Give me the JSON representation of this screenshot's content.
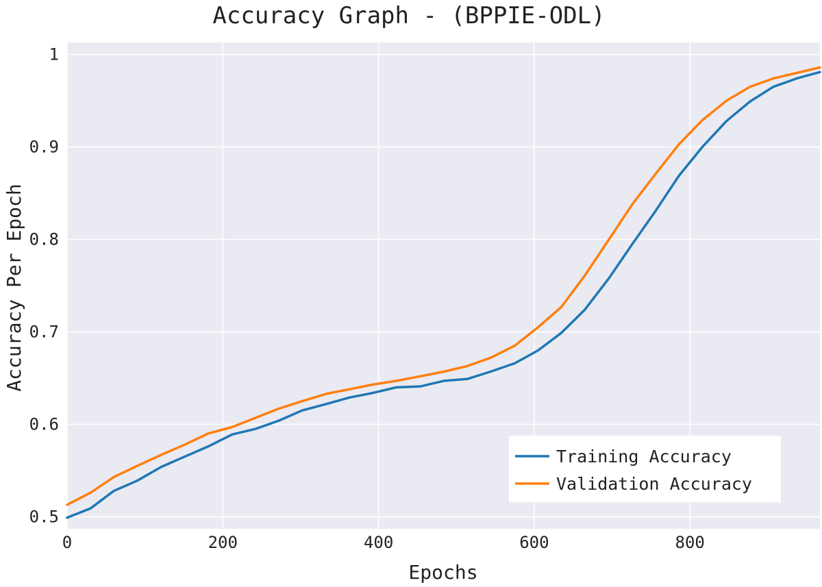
{
  "chart_data": {
    "type": "line",
    "title": "Accuracy Graph - (BPPIE-ODL)",
    "xlabel": "Epochs",
    "ylabel": "Accuracy Per Epoch",
    "xlim": [
      0,
      967
    ],
    "ylim": [
      0.487,
      1.013
    ],
    "x_ticks": [
      0,
      200,
      400,
      600,
      800
    ],
    "y_ticks": [
      0.5,
      0.6,
      0.7,
      0.8,
      0.9,
      1
    ],
    "x_tick_labels": [
      "0",
      "200",
      "400",
      "600",
      "800"
    ],
    "y_tick_labels": [
      "0.5",
      "0.6",
      "0.7",
      "0.8",
      "0.9",
      "1"
    ],
    "grid": true,
    "legend_position": "bottom-right",
    "x": [
      0,
      30,
      60,
      90,
      121,
      151,
      181,
      212,
      242,
      272,
      302,
      333,
      363,
      393,
      423,
      454,
      484,
      514,
      544,
      575,
      605,
      635,
      665,
      696,
      726,
      756,
      786,
      816,
      847,
      877,
      907,
      937,
      967
    ],
    "series": [
      {
        "name": "Training Accuracy",
        "color": "#1f77b4",
        "values": [
          0.499,
          0.509,
          0.528,
          0.539,
          0.554,
          0.565,
          0.576,
          0.589,
          0.595,
          0.604,
          0.615,
          0.622,
          0.629,
          0.634,
          0.64,
          0.641,
          0.647,
          0.649,
          0.657,
          0.666,
          0.68,
          0.699,
          0.724,
          0.758,
          0.795,
          0.831,
          0.869,
          0.9,
          0.928,
          0.949,
          0.965,
          0.974,
          0.981
        ]
      },
      {
        "name": "Validation Accuracy",
        "color": "#ff7f0e",
        "values": [
          0.513,
          0.526,
          0.543,
          0.555,
          0.567,
          0.578,
          0.59,
          0.597,
          0.607,
          0.617,
          0.625,
          0.633,
          0.638,
          0.643,
          0.647,
          0.652,
          0.657,
          0.663,
          0.672,
          0.685,
          0.705,
          0.727,
          0.761,
          0.8,
          0.838,
          0.871,
          0.903,
          0.929,
          0.95,
          0.965,
          0.974,
          0.98,
          0.986
        ]
      }
    ]
  }
}
